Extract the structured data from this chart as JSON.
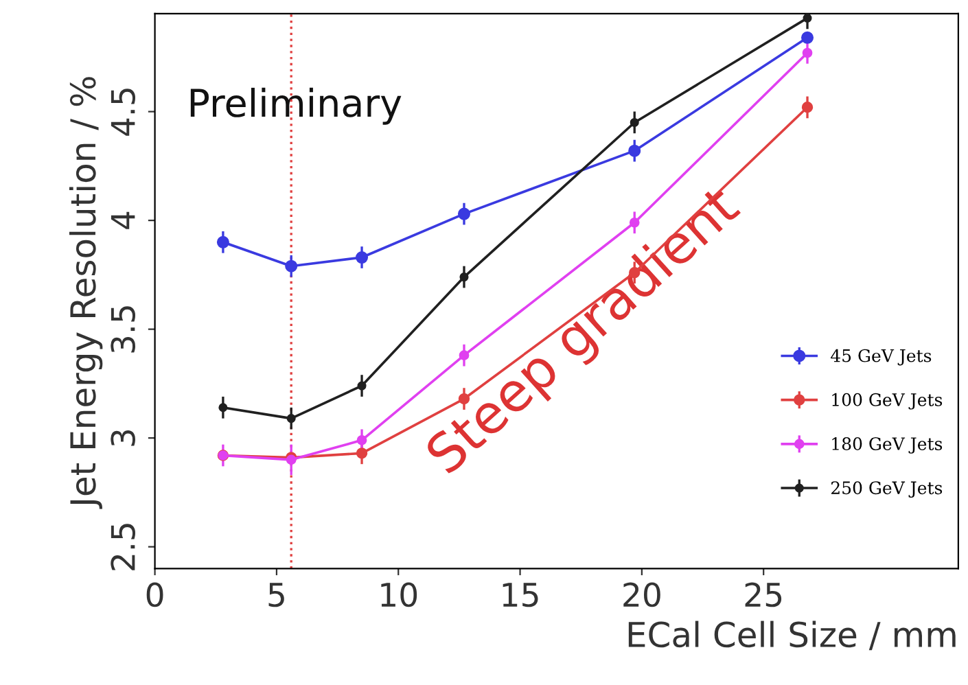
{
  "chart_data": {
    "type": "line",
    "xlabel": "ECal Cell Size / mm",
    "ylabel": "Jet Energy Resolution / %",
    "x": [
      2.8,
      5.6,
      8.5,
      12.7,
      19.7,
      26.8
    ],
    "series": [
      {
        "name": "45 GeV Jets",
        "color": "#3a3ae0",
        "values": [
          3.9,
          3.79,
          3.83,
          4.03,
          4.32,
          4.84
        ],
        "errors": [
          0.05,
          0.05,
          0.05,
          0.05,
          0.05,
          null
        ]
      },
      {
        "name": "100 GeV Jets",
        "color": "#e04040",
        "values": [
          2.92,
          2.91,
          2.93,
          3.18,
          3.76,
          4.52
        ],
        "errors": [
          null,
          null,
          0.05,
          0.05,
          0.05,
          0.05
        ]
      },
      {
        "name": "180 GeV Jets",
        "color": "#e040f0",
        "values": [
          2.92,
          2.9,
          2.99,
          3.38,
          3.99,
          4.77
        ],
        "errors": [
          0.05,
          0.07,
          0.05,
          0.05,
          0.05,
          0.05
        ]
      },
      {
        "name": "250 GeV Jets",
        "color": "#202020",
        "values": [
          3.14,
          3.09,
          3.24,
          3.74,
          4.45,
          4.93
        ],
        "errors": [
          0.05,
          0.05,
          0.05,
          0.05,
          0.05,
          0.05
        ]
      }
    ],
    "xlim": [
      0,
      33
    ],
    "ylim": [
      2.4,
      4.95
    ],
    "xticks": [
      0,
      5,
      10,
      15,
      20,
      25
    ],
    "yticks": [
      2.5,
      3,
      3.5,
      4,
      4.5
    ],
    "ref_lines": [
      {
        "axis": "x",
        "value": 5.6,
        "color": "#e04040",
        "line_style": "dotted"
      }
    ],
    "annotations": [
      "Preliminary",
      "Steep gradient"
    ],
    "marker": "circle",
    "legend": "bottom right",
    "grid": false
  }
}
